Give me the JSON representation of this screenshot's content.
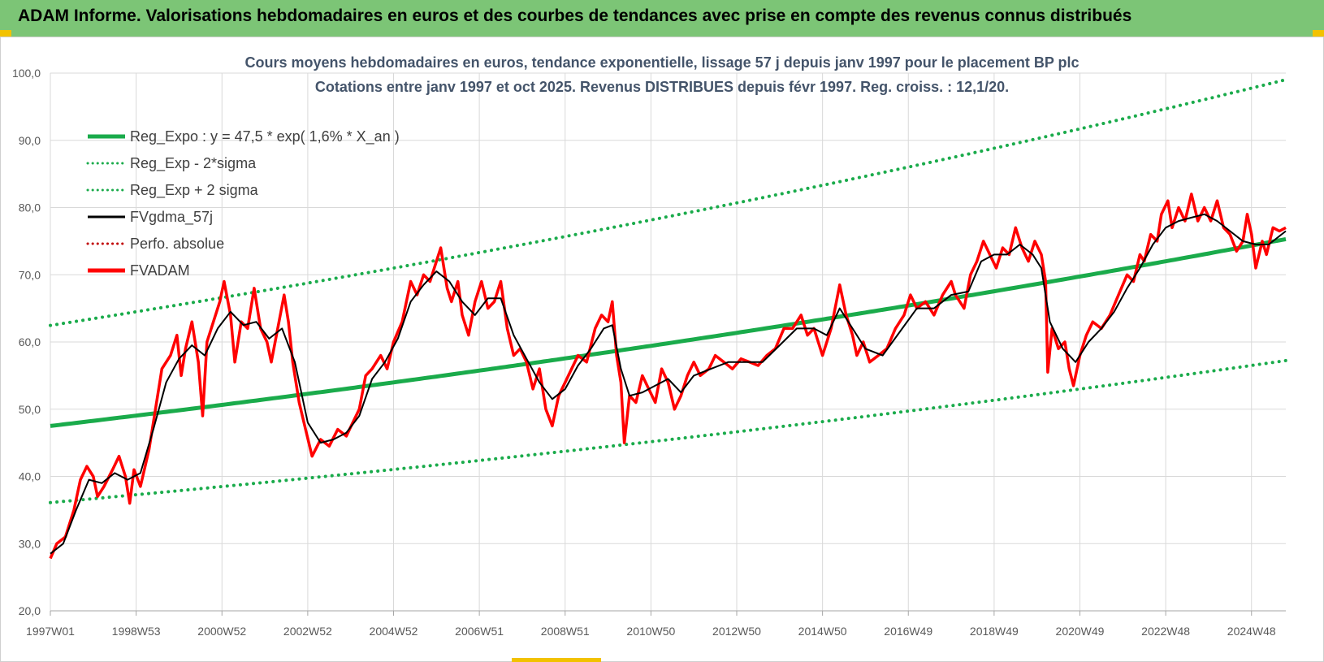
{
  "banner": {
    "title": "ADAM Informe. Valorisations hebdomadaires en euros et des courbes de tendances avec prise en compte des revenus connus distribués"
  },
  "chart_data": {
    "type": "line",
    "title": "Cours moyens hebdomadaires en euros, tendance exponentielle, lissage 57 j depuis janv 1997 pour le placement BP plc",
    "subtitle": "Cotations entre janv 1997 et oct 2025. Revenus DISTRIBUES depuis févr 1997. Reg. croiss. : 12,1/20.",
    "xlabel": "",
    "ylabel": "",
    "ylim": [
      20,
      100
    ],
    "yticks": [
      "20,0",
      "30,0",
      "40,0",
      "50,0",
      "60,0",
      "70,0",
      "80,0",
      "90,0",
      "100,0"
    ],
    "xrange": [
      1997.0,
      2025.8
    ],
    "xticks": [
      {
        "label": "1997W01",
        "x": 1997.0
      },
      {
        "label": "1998W53",
        "x": 1999.0
      },
      {
        "label": "2000W52",
        "x": 2001.0
      },
      {
        "label": "2002W52",
        "x": 2003.0
      },
      {
        "label": "2004W52",
        "x": 2005.0
      },
      {
        "label": "2006W51",
        "x": 2007.0
      },
      {
        "label": "2008W51",
        "x": 2009.0
      },
      {
        "label": "2010W50",
        "x": 2011.0
      },
      {
        "label": "2012W50",
        "x": 2013.0
      },
      {
        "label": "2014W50",
        "x": 2015.0
      },
      {
        "label": "2016W49",
        "x": 2017.0
      },
      {
        "label": "2018W49",
        "x": 2019.0
      },
      {
        "label": "2020W49",
        "x": 2021.0
      },
      {
        "label": "2022W48",
        "x": 2023.0
      },
      {
        "label": "2024W48",
        "x": 2025.0
      }
    ],
    "grid": true,
    "legend_position": "top-left",
    "legend": [
      {
        "label": "Reg_Expo : y = 47,5 * exp( 1,6% *  X_an )",
        "color": "#1aab4b",
        "style": "solid-thick"
      },
      {
        "label": "Reg_Exp - 2*sigma",
        "color": "#1aab4b",
        "style": "dotted"
      },
      {
        "label": "Reg_Exp + 2 sigma",
        "color": "#1aab4b",
        "style": "dotted"
      },
      {
        "label": "FVgdma_57j",
        "color": "#000000",
        "style": "solid"
      },
      {
        "label": "Perfo. absolue",
        "color": "#c00000",
        "style": "dotted"
      },
      {
        "label": "FVADAM",
        "color": "#ff0000",
        "style": "solid-thick"
      }
    ],
    "trend": {
      "a": 47.5,
      "rate": 0.016,
      "band_low_factor": 0.76,
      "band_high_factor": 1.315
    },
    "series_fvadam": [
      [
        1997.0,
        27.8
      ],
      [
        1997.15,
        30.0
      ],
      [
        1997.35,
        31.0
      ],
      [
        1997.55,
        35.0
      ],
      [
        1997.7,
        39.5
      ],
      [
        1997.85,
        41.5
      ],
      [
        1998.0,
        40.0
      ],
      [
        1998.1,
        37.0
      ],
      [
        1998.25,
        38.5
      ],
      [
        1998.45,
        41.0
      ],
      [
        1998.6,
        43.0
      ],
      [
        1998.75,
        40.0
      ],
      [
        1998.85,
        36.0
      ],
      [
        1998.95,
        41.0
      ],
      [
        1999.1,
        38.5
      ],
      [
        1999.3,
        44.0
      ],
      [
        1999.45,
        50.0
      ],
      [
        1999.6,
        56.0
      ],
      [
        1999.8,
        58.0
      ],
      [
        1999.95,
        61.0
      ],
      [
        2000.05,
        55.0
      ],
      [
        2000.15,
        59.0
      ],
      [
        2000.3,
        63.0
      ],
      [
        2000.45,
        57.0
      ],
      [
        2000.55,
        49.0
      ],
      [
        2000.65,
        60.0
      ],
      [
        2000.8,
        63.0
      ],
      [
        2000.95,
        66.0
      ],
      [
        2001.05,
        69.0
      ],
      [
        2001.2,
        64.0
      ],
      [
        2001.3,
        57.0
      ],
      [
        2001.45,
        63.0
      ],
      [
        2001.6,
        62.0
      ],
      [
        2001.75,
        68.0
      ],
      [
        2001.9,
        62.0
      ],
      [
        2002.05,
        60.0
      ],
      [
        2002.15,
        57.0
      ],
      [
        2002.3,
        62.0
      ],
      [
        2002.45,
        67.0
      ],
      [
        2002.55,
        63.0
      ],
      [
        2002.65,
        57.0
      ],
      [
        2002.8,
        51.0
      ],
      [
        2002.95,
        47.0
      ],
      [
        2003.1,
        43.0
      ],
      [
        2003.3,
        45.5
      ],
      [
        2003.5,
        44.5
      ],
      [
        2003.7,
        47.0
      ],
      [
        2003.9,
        46.0
      ],
      [
        2004.05,
        48.0
      ],
      [
        2004.2,
        50.0
      ],
      [
        2004.35,
        55.0
      ],
      [
        2004.5,
        56.0
      ],
      [
        2004.7,
        58.0
      ],
      [
        2004.85,
        56.0
      ],
      [
        2005.0,
        60.0
      ],
      [
        2005.2,
        63.0
      ],
      [
        2005.4,
        69.0
      ],
      [
        2005.55,
        67.0
      ],
      [
        2005.7,
        70.0
      ],
      [
        2005.85,
        69.0
      ],
      [
        2006.0,
        72.0
      ],
      [
        2006.1,
        74.0
      ],
      [
        2006.25,
        68.0
      ],
      [
        2006.35,
        66.0
      ],
      [
        2006.5,
        69.0
      ],
      [
        2006.6,
        64.0
      ],
      [
        2006.75,
        61.0
      ],
      [
        2006.9,
        66.0
      ],
      [
        2007.05,
        69.0
      ],
      [
        2007.2,
        65.0
      ],
      [
        2007.35,
        66.0
      ],
      [
        2007.5,
        69.0
      ],
      [
        2007.65,
        62.0
      ],
      [
        2007.8,
        58.0
      ],
      [
        2007.95,
        59.0
      ],
      [
        2008.1,
        57.0
      ],
      [
        2008.25,
        53.0
      ],
      [
        2008.4,
        56.0
      ],
      [
        2008.55,
        50.0
      ],
      [
        2008.7,
        47.5
      ],
      [
        2008.85,
        52.0
      ],
      [
        2009.0,
        54.0
      ],
      [
        2009.15,
        56.0
      ],
      [
        2009.3,
        58.0
      ],
      [
        2009.5,
        57.0
      ],
      [
        2009.7,
        62.0
      ],
      [
        2009.85,
        64.0
      ],
      [
        2010.0,
        63.0
      ],
      [
        2010.1,
        66.0
      ],
      [
        2010.2,
        58.0
      ],
      [
        2010.3,
        54.0
      ],
      [
        2010.38,
        45.0
      ],
      [
        2010.5,
        52.0
      ],
      [
        2010.65,
        51.0
      ],
      [
        2010.8,
        55.0
      ],
      [
        2010.95,
        53.0
      ],
      [
        2011.1,
        51.0
      ],
      [
        2011.25,
        56.0
      ],
      [
        2011.4,
        54.0
      ],
      [
        2011.55,
        50.0
      ],
      [
        2011.7,
        52.0
      ],
      [
        2011.85,
        55.0
      ],
      [
        2012.0,
        57.0
      ],
      [
        2012.15,
        55.0
      ],
      [
        2012.35,
        56.0
      ],
      [
        2012.5,
        58.0
      ],
      [
        2012.7,
        57.0
      ],
      [
        2012.9,
        56.0
      ],
      [
        2013.1,
        57.5
      ],
      [
        2013.3,
        57.0
      ],
      [
        2013.5,
        56.5
      ],
      [
        2013.7,
        58.0
      ],
      [
        2013.9,
        59.0
      ],
      [
        2014.1,
        62.0
      ],
      [
        2014.3,
        62.0
      ],
      [
        2014.5,
        64.0
      ],
      [
        2014.65,
        61.0
      ],
      [
        2014.8,
        62.0
      ],
      [
        2015.0,
        58.0
      ],
      [
        2015.2,
        62.0
      ],
      [
        2015.4,
        68.5
      ],
      [
        2015.55,
        64.0
      ],
      [
        2015.7,
        61.0
      ],
      [
        2015.8,
        58.0
      ],
      [
        2015.95,
        60.0
      ],
      [
        2016.1,
        57.0
      ],
      [
        2016.3,
        58.0
      ],
      [
        2016.5,
        59.0
      ],
      [
        2016.7,
        62.0
      ],
      [
        2016.9,
        64.0
      ],
      [
        2017.05,
        67.0
      ],
      [
        2017.2,
        65.0
      ],
      [
        2017.4,
        66.0
      ],
      [
        2017.6,
        64.0
      ],
      [
        2017.8,
        67.0
      ],
      [
        2018.0,
        69.0
      ],
      [
        2018.1,
        67.0
      ],
      [
        2018.3,
        65.0
      ],
      [
        2018.45,
        70.0
      ],
      [
        2018.6,
        72.0
      ],
      [
        2018.75,
        75.0
      ],
      [
        2018.9,
        73.0
      ],
      [
        2019.05,
        71.0
      ],
      [
        2019.2,
        74.0
      ],
      [
        2019.35,
        73.0
      ],
      [
        2019.5,
        77.0
      ],
      [
        2019.65,
        74.0
      ],
      [
        2019.8,
        72.0
      ],
      [
        2019.95,
        75.0
      ],
      [
        2020.1,
        73.0
      ],
      [
        2020.2,
        69.0
      ],
      [
        2020.25,
        55.5
      ],
      [
        2020.35,
        62.0
      ],
      [
        2020.5,
        59.0
      ],
      [
        2020.65,
        60.0
      ],
      [
        2020.75,
        56.0
      ],
      [
        2020.85,
        53.5
      ],
      [
        2021.0,
        58.0
      ],
      [
        2021.15,
        61.0
      ],
      [
        2021.3,
        63.0
      ],
      [
        2021.5,
        62.0
      ],
      [
        2021.7,
        64.0
      ],
      [
        2021.9,
        67.0
      ],
      [
        2022.1,
        70.0
      ],
      [
        2022.25,
        69.0
      ],
      [
        2022.4,
        73.0
      ],
      [
        2022.5,
        72.0
      ],
      [
        2022.65,
        76.0
      ],
      [
        2022.8,
        75.0
      ],
      [
        2022.9,
        79.0
      ],
      [
        2023.05,
        81.0
      ],
      [
        2023.15,
        77.0
      ],
      [
        2023.3,
        80.0
      ],
      [
        2023.45,
        78.0
      ],
      [
        2023.6,
        82.0
      ],
      [
        2023.75,
        78.0
      ],
      [
        2023.9,
        80.0
      ],
      [
        2024.05,
        78.0
      ],
      [
        2024.2,
        81.0
      ],
      [
        2024.35,
        77.0
      ],
      [
        2024.5,
        76.0
      ],
      [
        2024.65,
        73.5
      ],
      [
        2024.8,
        75.0
      ],
      [
        2024.9,
        79.0
      ],
      [
        2025.0,
        76.0
      ],
      [
        2025.1,
        71.0
      ],
      [
        2025.25,
        75.0
      ],
      [
        2025.35,
        73.0
      ],
      [
        2025.5,
        77.0
      ],
      [
        2025.65,
        76.5
      ],
      [
        2025.8,
        77.0
      ]
    ],
    "series_fvgdma": [
      [
        1997.0,
        28.5
      ],
      [
        1997.3,
        30.0
      ],
      [
        1997.6,
        35.0
      ],
      [
        1997.9,
        39.5
      ],
      [
        1998.2,
        39.0
      ],
      [
        1998.5,
        40.5
      ],
      [
        1998.8,
        39.5
      ],
      [
        1999.1,
        40.5
      ],
      [
        1999.4,
        47.0
      ],
      [
        1999.7,
        54.0
      ],
      [
        2000.0,
        57.5
      ],
      [
        2000.3,
        59.5
      ],
      [
        2000.6,
        58.0
      ],
      [
        2000.9,
        62.0
      ],
      [
        2001.2,
        64.5
      ],
      [
        2001.5,
        62.5
      ],
      [
        2001.8,
        63.0
      ],
      [
        2002.1,
        60.5
      ],
      [
        2002.4,
        62.0
      ],
      [
        2002.7,
        57.0
      ],
      [
        2003.0,
        48.0
      ],
      [
        2003.3,
        45.0
      ],
      [
        2003.6,
        45.5
      ],
      [
        2003.9,
        46.5
      ],
      [
        2004.2,
        49.0
      ],
      [
        2004.5,
        54.5
      ],
      [
        2004.8,
        57.0
      ],
      [
        2005.1,
        60.5
      ],
      [
        2005.4,
        66.0
      ],
      [
        2005.7,
        68.5
      ],
      [
        2006.0,
        70.5
      ],
      [
        2006.3,
        69.0
      ],
      [
        2006.6,
        66.0
      ],
      [
        2006.9,
        64.0
      ],
      [
        2007.2,
        66.5
      ],
      [
        2007.5,
        66.5
      ],
      [
        2007.8,
        61.0
      ],
      [
        2008.1,
        57.5
      ],
      [
        2008.4,
        54.0
      ],
      [
        2008.7,
        51.5
      ],
      [
        2009.0,
        53.0
      ],
      [
        2009.3,
        56.5
      ],
      [
        2009.6,
        59.0
      ],
      [
        2009.9,
        62.0
      ],
      [
        2010.1,
        62.5
      ],
      [
        2010.3,
        56.0
      ],
      [
        2010.5,
        52.0
      ],
      [
        2010.8,
        52.5
      ],
      [
        2011.1,
        53.5
      ],
      [
        2011.4,
        54.5
      ],
      [
        2011.7,
        52.5
      ],
      [
        2012.0,
        55.0
      ],
      [
        2012.4,
        56.0
      ],
      [
        2012.8,
        57.0
      ],
      [
        2013.2,
        57.0
      ],
      [
        2013.6,
        57.0
      ],
      [
        2014.0,
        59.5
      ],
      [
        2014.4,
        62.0
      ],
      [
        2014.8,
        62.0
      ],
      [
        2015.1,
        61.0
      ],
      [
        2015.4,
        65.0
      ],
      [
        2015.7,
        62.0
      ],
      [
        2016.0,
        59.0
      ],
      [
        2016.4,
        58.0
      ],
      [
        2016.8,
        61.5
      ],
      [
        2017.2,
        65.0
      ],
      [
        2017.6,
        65.0
      ],
      [
        2018.0,
        67.0
      ],
      [
        2018.4,
        67.5
      ],
      [
        2018.7,
        72.0
      ],
      [
        2019.0,
        73.0
      ],
      [
        2019.3,
        73.0
      ],
      [
        2019.6,
        74.5
      ],
      [
        2019.9,
        73.0
      ],
      [
        2020.1,
        71.0
      ],
      [
        2020.3,
        63.0
      ],
      [
        2020.6,
        59.0
      ],
      [
        2020.9,
        57.0
      ],
      [
        2021.2,
        60.0
      ],
      [
        2021.5,
        62.0
      ],
      [
        2021.8,
        64.5
      ],
      [
        2022.1,
        68.0
      ],
      [
        2022.4,
        71.0
      ],
      [
        2022.7,
        74.5
      ],
      [
        2023.0,
        77.0
      ],
      [
        2023.3,
        78.0
      ],
      [
        2023.6,
        78.5
      ],
      [
        2023.9,
        79.0
      ],
      [
        2024.2,
        78.0
      ],
      [
        2024.5,
        76.5
      ],
      [
        2024.8,
        75.0
      ],
      [
        2025.1,
        74.5
      ],
      [
        2025.4,
        74.5
      ],
      [
        2025.8,
        76.5
      ]
    ],
    "series_perfo_absolue": []
  }
}
